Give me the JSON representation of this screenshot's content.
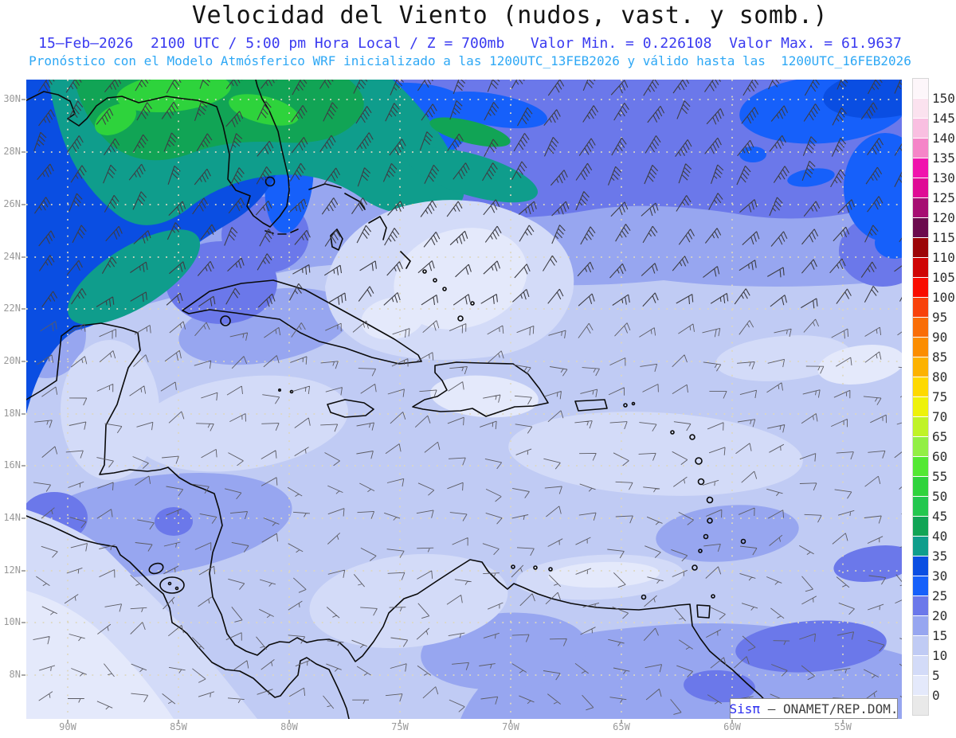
{
  "header": {
    "title": "Velocidad del Viento (nudos, vast. y somb.)",
    "subtitle_line1": "15–Feb–2026  2100 UTC / 5:00 pm Hora Local / Z = 700mb   Valor Min. = 0.226108  Valor Max. = 61.9637",
    "subtitle_line2": "Pronóstico con el Modelo Atmósferico WRF inicializado a las 1200UTC_13FEB2026 y válido hasta las  1200UTC_16FEB2026",
    "title_color": "#141414",
    "subtitle1_color": "#3a3af0",
    "subtitle2_color": "#2ea8f5"
  },
  "map": {
    "lat_labels": [
      "30N",
      "28N",
      "26N",
      "24N",
      "22N",
      "20N",
      "18N",
      "16N",
      "14N",
      "12N",
      "10N",
      "8N"
    ],
    "lon_labels": [
      "90W",
      "85W",
      "80W",
      "75W",
      "70W",
      "65W",
      "60W",
      "55W"
    ],
    "axis_label_color": "#9a9a9a",
    "graticule_color": "#ddd7c0",
    "coastline_color": "#0a0a0a",
    "attribution": {
      "brand": "Sisπ",
      "org": "– ONAMET/REP.DOM."
    }
  },
  "colorbar": {
    "tick_labels": [
      "150",
      "145",
      "140",
      "135",
      "130",
      "125",
      "120",
      "115",
      "110",
      "105",
      "100",
      "95",
      "90",
      "85",
      "80",
      "75",
      "70",
      "65",
      "60",
      "55",
      "50",
      "45",
      "40",
      "35",
      "30",
      "25",
      "20",
      "15",
      "10",
      "5",
      "0"
    ],
    "segments": [
      {
        "range": ">150",
        "color": "#fdf6fa"
      },
      {
        "range": "145-150",
        "color": "#fbe2ef"
      },
      {
        "range": "140-145",
        "color": "#f9bfe1"
      },
      {
        "range": "135-140",
        "color": "#f585c8"
      },
      {
        "range": "130-135",
        "color": "#f014ad"
      },
      {
        "range": "125-130",
        "color": "#df0b95"
      },
      {
        "range": "120-125",
        "color": "#a60d72"
      },
      {
        "range": "115-120",
        "color": "#6b0a4d"
      },
      {
        "range": "110-115",
        "color": "#9c0508"
      },
      {
        "range": "105-110",
        "color": "#cf0404"
      },
      {
        "range": "100-105",
        "color": "#f90c00"
      },
      {
        "range": "95-100",
        "color": "#f8410b"
      },
      {
        "range": "90-95",
        "color": "#f96d07"
      },
      {
        "range": "85-90",
        "color": "#fb8d01"
      },
      {
        "range": "80-85",
        "color": "#fcb201"
      },
      {
        "range": "75-80",
        "color": "#fed900"
      },
      {
        "range": "70-75",
        "color": "#eef20a"
      },
      {
        "range": "65-70",
        "color": "#c0f327"
      },
      {
        "range": "60-65",
        "color": "#92ef44"
      },
      {
        "range": "55-60",
        "color": "#53e832"
      },
      {
        "range": "50-55",
        "color": "#2fd33c"
      },
      {
        "range": "45-50",
        "color": "#23c74e"
      },
      {
        "range": "40-45",
        "color": "#11a455"
      },
      {
        "range": "35-40",
        "color": "#0f9d8c"
      },
      {
        "range": "30-35",
        "color": "#0a4ee2"
      },
      {
        "range": "25-30",
        "color": "#1660fa"
      },
      {
        "range": "20-25",
        "color": "#6b78ea"
      },
      {
        "range": "15-20",
        "color": "#97a6f0"
      },
      {
        "range": "10-15",
        "color": "#c0cbf4"
      },
      {
        "range": "5-10",
        "color": "#d3dbf8"
      },
      {
        "range": "0-5",
        "color": "#e4e9fb"
      },
      {
        "range": "<0",
        "color": "#e9e9e9"
      }
    ]
  },
  "wind_barbs": {
    "barb_color_north": "#3d3d44",
    "barb_color_south": "#5c5c64",
    "grid_dx": 40,
    "grid_dy": 38,
    "zones": [
      {
        "min_lat": 26,
        "speed": 37,
        "speed_var": 12,
        "dir": 30,
        "dir_var": 24
      },
      {
        "min_lat": 24,
        "speed": 30,
        "speed_var": 12,
        "dir": 36,
        "dir_var": 28
      },
      {
        "min_lat": 22,
        "speed": 23,
        "speed_var": 10,
        "dir": 44,
        "dir_var": 34
      },
      {
        "min_lat": 20,
        "speed": 16,
        "speed_var": 8,
        "dir": 55,
        "dir_var": 46
      },
      {
        "min_lat": 17,
        "speed": 12,
        "speed_var": 7,
        "dir": 72,
        "dir_var": 55
      },
      {
        "min_lat": 12,
        "speed": 9,
        "speed_var": 6,
        "dir": 84,
        "dir_var": 75
      },
      {
        "min_lat": -90,
        "speed": 7,
        "speed_var": 6,
        "dir": 92,
        "dir_var": 100
      }
    ]
  },
  "chart_data": {
    "type": "heatmap",
    "variable": "Velocidad del Viento",
    "units": "nudos (vast. y somb.)",
    "level": "Z = 700mb",
    "valid_time": "15-Feb-2026 2100 UTC / 5:00 pm Hora Local",
    "model": "Modelo Atmósferico WRF",
    "initialized": "1200UTC_13FEB2026",
    "valid_until": "1200UTC_16FEB2026",
    "valor_min": 0.226108,
    "valor_max": 61.9637,
    "scale_min": 0,
    "scale_max": 150,
    "scale_step": 5,
    "lat_ticks_deg_n": [
      30,
      28,
      26,
      24,
      22,
      20,
      18,
      16,
      14,
      12,
      10,
      8
    ],
    "lon_ticks_deg_w": [
      90,
      85,
      80,
      75,
      70,
      65,
      60,
      55
    ]
  }
}
